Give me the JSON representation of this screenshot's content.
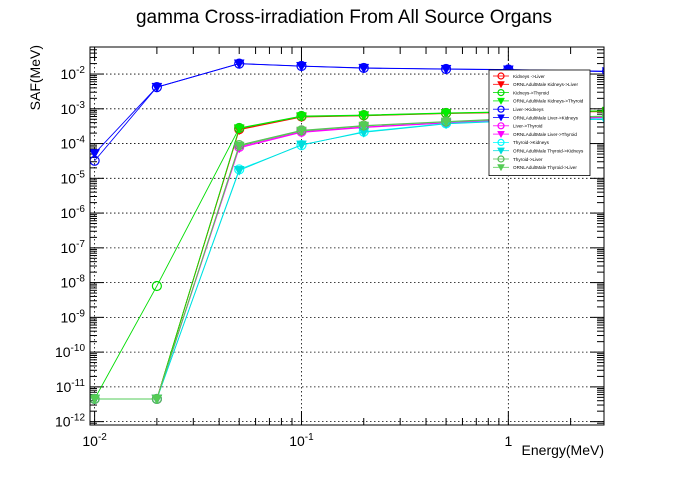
{
  "chart_data": {
    "type": "line",
    "title": "gamma Cross-irradiation From All Source Organs",
    "xlabel": "Energy(MeV)",
    "ylabel": "SAF(MeV)",
    "xscale": "log",
    "yscale": "log",
    "xlim": [
      0.0095,
      2.9
    ],
    "ylim": [
      8e-13,
      0.06
    ],
    "grid": true,
    "legend_position": "top-right",
    "x_ticks": [
      {
        "value": 0.01,
        "base": "10",
        "exp": "-2"
      },
      {
        "value": 0.1,
        "base": "10",
        "exp": "-1"
      },
      {
        "value": 1,
        "base": "1",
        "exp": ""
      }
    ],
    "y_ticks": [
      {
        "value": 1e-12,
        "base": "10",
        "exp": "-12"
      },
      {
        "value": 1e-11,
        "base": "10",
        "exp": "-11"
      },
      {
        "value": 1e-10,
        "base": "10",
        "exp": "-10"
      },
      {
        "value": 1e-09,
        "base": "10",
        "exp": "-9"
      },
      {
        "value": 1e-08,
        "base": "10",
        "exp": "-8"
      },
      {
        "value": 1e-07,
        "base": "10",
        "exp": "-7"
      },
      {
        "value": 1e-06,
        "base": "10",
        "exp": "-6"
      },
      {
        "value": 1e-05,
        "base": "10",
        "exp": "-5"
      },
      {
        "value": 0.0001,
        "base": "10",
        "exp": "-4"
      },
      {
        "value": 0.001,
        "base": "10",
        "exp": "-3"
      },
      {
        "value": 0.01,
        "base": "10",
        "exp": "-2"
      }
    ],
    "x": [
      0.01,
      0.02,
      0.05,
      0.1,
      0.2,
      0.5,
      1,
      3
    ],
    "series": [
      {
        "name": "Kidneys ->Liver",
        "color": "#ff0000",
        "marker": "open-circle",
        "values": [
          4.5e-12,
          4.5e-12,
          0.00026,
          0.0006,
          0.00065,
          0.00075,
          0.0008,
          0.00085
        ]
      },
      {
        "name": "ORNLAdultMale Kidneys->Liver",
        "color": "#ff0000",
        "marker": "triangle-down",
        "values": [
          4.5e-12,
          4.5e-12,
          0.00025,
          0.00058,
          0.00063,
          0.00073,
          0.00078,
          0.00083
        ]
      },
      {
        "name": "Kidneys->Thyroid",
        "color": "#00dd00",
        "marker": "open-circle",
        "values": [
          4.5e-12,
          8e-09,
          0.00028,
          0.00062,
          0.00066,
          0.00076,
          0.00082,
          0.00088
        ]
      },
      {
        "name": "ORNLAdultMale Kidneys->Thyroid",
        "color": "#00ee00",
        "marker": "triangle-down",
        "values": [
          4.5e-12,
          4.5e-12,
          0.00027,
          0.0006,
          0.00064,
          0.00074,
          0.0008,
          0.00086
        ]
      },
      {
        "name": "Liver->Kidneys",
        "color": "#0000ff",
        "marker": "open-circle",
        "values": [
          3.2e-05,
          0.0042,
          0.02,
          0.017,
          0.015,
          0.014,
          0.0135,
          0.012
        ]
      },
      {
        "name": "ORNLAdultMale Liver->Kidneys",
        "color": "#0000ff",
        "marker": "triangle-down",
        "values": [
          5.2e-05,
          0.0042,
          0.0198,
          0.0168,
          0.0148,
          0.0138,
          0.0133,
          0.0118
        ]
      },
      {
        "name": "Liver->Thyroid",
        "color": "#ff00ff",
        "marker": "open-circle",
        "values": [
          4.5e-12,
          4.5e-12,
          8e-05,
          0.00022,
          0.0003,
          0.0004,
          0.00048,
          0.00058
        ]
      },
      {
        "name": "ORNLAdultMale Liver->Thyroid",
        "color": "#ff00ff",
        "marker": "triangle-down",
        "values": [
          4.5e-12,
          4.5e-12,
          7.5e-05,
          0.00021,
          0.00029,
          0.00039,
          0.00047,
          0.00056
        ]
      },
      {
        "name": "Thyroid->Kidneys",
        "color": "#00ffff",
        "marker": "open-circle",
        "values": [
          4.5e-12,
          4.5e-12,
          1.8e-05,
          9e-05,
          0.00022,
          0.00038,
          0.00045,
          0.00052
        ]
      },
      {
        "name": "ORNLAdultMale Thyroid->Kidneys",
        "color": "#00dddd",
        "marker": "triangle-down",
        "values": [
          4.5e-12,
          4.5e-12,
          1.7e-05,
          9.2e-05,
          0.00021,
          0.00037,
          0.00044,
          0.0005
        ]
      },
      {
        "name": "Thyroid->Liver",
        "color": "#55bb55",
        "marker": "open-circle",
        "values": [
          4.5e-12,
          4.5e-12,
          9e-05,
          0.00024,
          0.00033,
          0.00043,
          0.00052,
          0.00062
        ]
      },
      {
        "name": "ORNLAdultMale Thyroid->Liver",
        "color": "#55cc55",
        "marker": "triangle-down",
        "values": [
          4.5e-12,
          4.5e-12,
          8.5e-05,
          0.00023,
          0.00032,
          0.00042,
          0.0005,
          0.0006
        ]
      }
    ]
  }
}
